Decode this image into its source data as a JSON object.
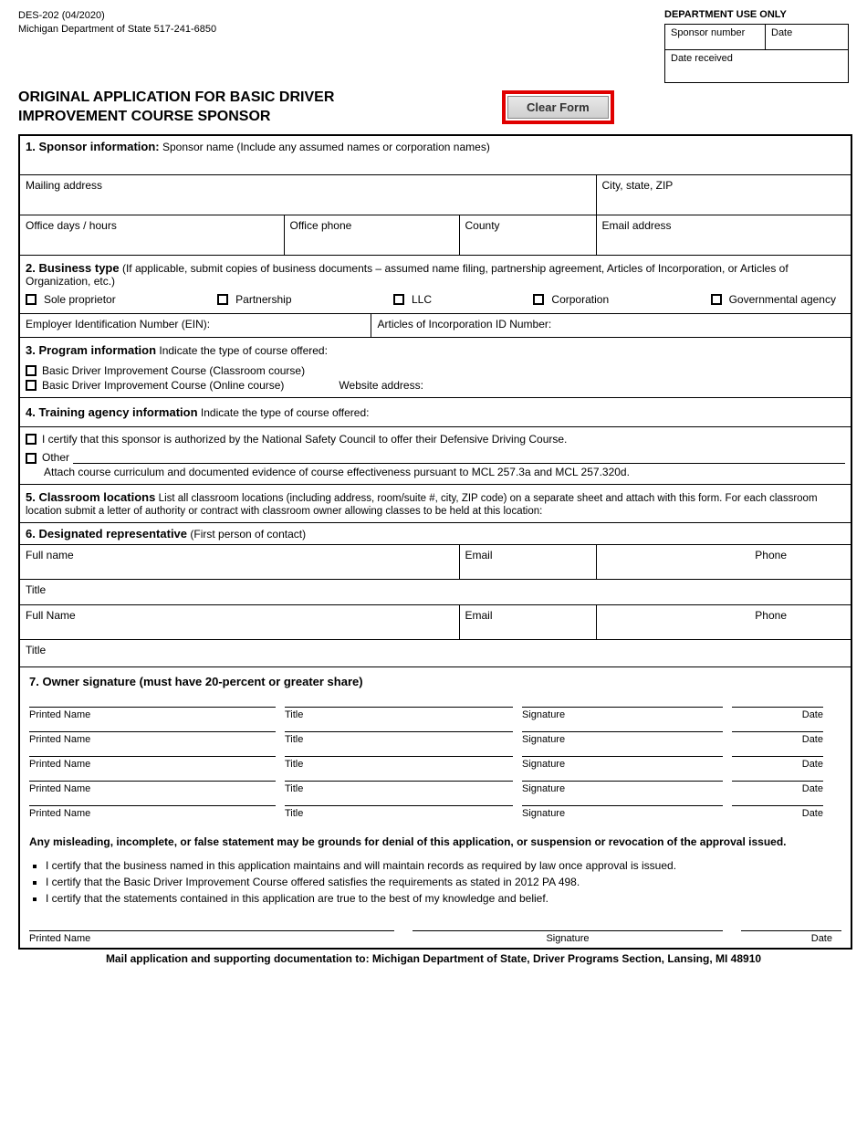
{
  "meta": {
    "form_code": "DES-202 (04/2020)",
    "agency": "Michigan Department of State 517-241-6850",
    "title": "ORIGINAL APPLICATION FOR BASIC DRIVER IMPROVEMENT COURSE SPONSOR",
    "clear_button": "Clear Form"
  },
  "dept": {
    "heading": "DEPARTMENT USE ONLY",
    "sponsor_number": "Sponsor number",
    "date": "Date",
    "date_received": "Date received"
  },
  "s1": {
    "heading": "1. Sponsor information:",
    "sub": "Sponsor name (Include any assumed names or corporation names)",
    "mailing": "Mailing address",
    "csz": "City, state, ZIP",
    "hours": "Office days / hours",
    "phone": "Office phone",
    "county": "County",
    "email": "Email address"
  },
  "s2": {
    "heading": "2. Business type",
    "sub": "(If applicable, submit copies of business documents – assumed name filing, partnership agreement, Articles of Incorporation, or Articles of Organization, etc.)",
    "opts": [
      "Sole proprietor",
      "Partnership",
      "LLC",
      "Corporation",
      "Governmental agency"
    ],
    "ein": "Employer Identification Number (EIN):",
    "articles": "Articles of Incorporation ID Number:"
  },
  "s3": {
    "heading": "3. Program information",
    "sub": "Indicate the type of course offered:",
    "opt1": "Basic Driver Improvement Course (Classroom course)",
    "opt2": "Basic Driver Improvement Course (Online course)",
    "website": "Website address:"
  },
  "s4": {
    "heading": "4. Training agency information",
    "sub": "Indicate the type of course offered:",
    "cert": "I certify that this sponsor is authorized by the National Safety Council to offer their Defensive Driving Course.",
    "other": "Other",
    "attach": "Attach course curriculum and documented evidence of course effectiveness pursuant to MCL 257.3a and MCL 257.320d."
  },
  "s5": {
    "heading": "5. Classroom locations",
    "sub": "List all classroom locations (including address, room/suite #, city, ZIP code) on a separate sheet and attach with this form. For each classroom location submit a letter of authority or contract with classroom owner allowing classes to be held at this location:"
  },
  "s6": {
    "heading": "6. Designated representative",
    "sub": "(First person of contact)",
    "full_name": "Full name",
    "full_name2": "Full Name",
    "email": "Email",
    "phone": "Phone",
    "title": "Title"
  },
  "s7": {
    "heading": "7. Owner signature (must have 20-percent or greater share)",
    "cols": {
      "printed": "Printed Name",
      "title": "Title",
      "signature": "Signature",
      "date": "Date"
    },
    "warning": "Any misleading, incomplete, or false statement may be grounds for denial of this application, or suspension or revocation of the approval issued.",
    "certs": [
      "I certify that the business named in this application maintains and will maintain records as required by law once approval is issued.",
      "I certify that the Basic Driver Improvement Course offered satisfies the requirements as stated in 2012 PA 498.",
      "I certify that the statements contained in this application are true to the best of my knowledge and belief."
    ],
    "footer": {
      "printed": "Printed Name",
      "signature": "Signature",
      "date": "Date"
    }
  },
  "mail": "Mail application and supporting documentation to: Michigan Department of State, Driver Programs Section, Lansing, MI 48910"
}
